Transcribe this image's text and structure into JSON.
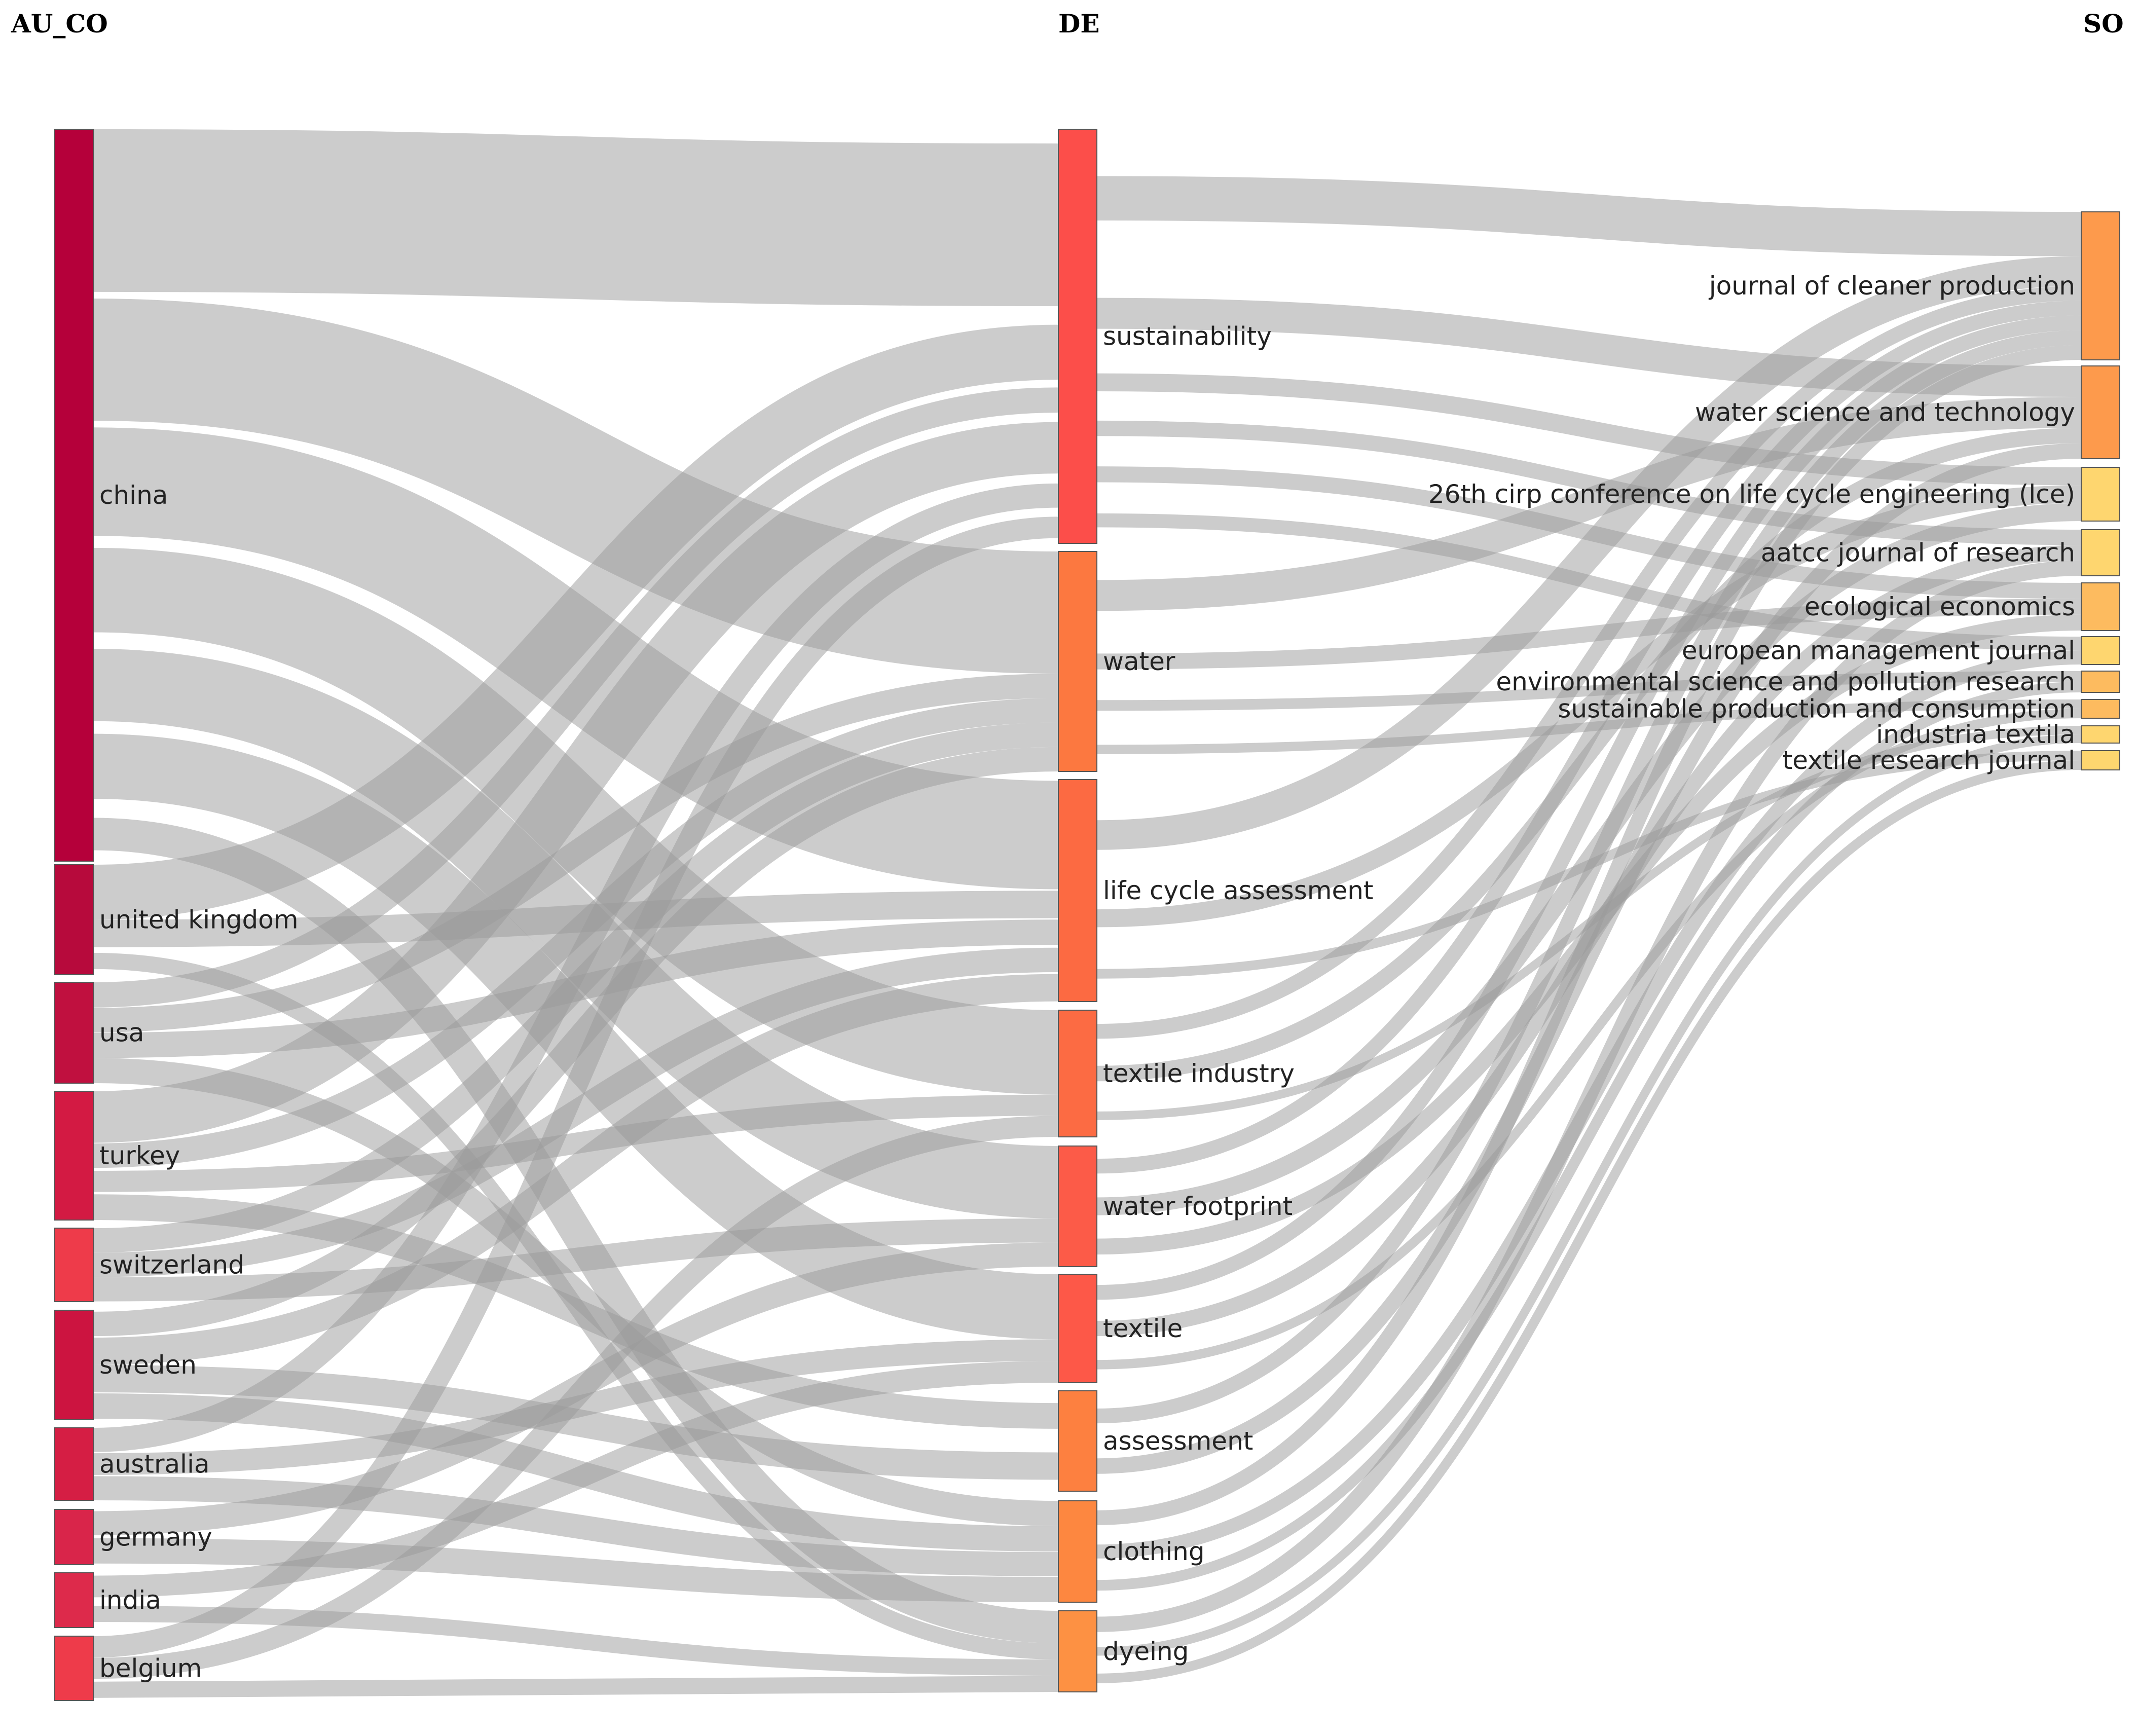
{
  "columns": {
    "left": "AU_CO",
    "middle": "DE",
    "right": "SO"
  },
  "node_colors": {
    "china": "#b5003a",
    "united_kingdom": "#b70a3c",
    "usa": "#c0103f",
    "turkey": "#d31a43",
    "switzerland": "#ee3b4a",
    "sweden": "#cc1440",
    "australia": "#d51e44",
    "germany": "#d9254a",
    "india": "#dd2a4b",
    "belgium": "#ee3b4a",
    "sustainability": "#fc4e4a",
    "water": "#fc7840",
    "life_cycle_assessment": "#fc6a42",
    "textile_industry": "#fc6b43",
    "water_footprint": "#fc5b48",
    "textile": "#fd5848",
    "assessment": "#fd8040",
    "clothing": "#fd8740",
    "dyeing": "#fd9143",
    "journal_of_cleaner_production": "#fd9a4c",
    "water_science_and_technology": "#fd9a4c",
    "small_journal": "#fed66f",
    "mid_journal": "#fdbb5f"
  },
  "chart_data": {
    "type": "sankey",
    "columns": [
      "AU_CO",
      "DE",
      "SO"
    ],
    "nodes": [
      {
        "id": "china",
        "label": "china",
        "column": 0
      },
      {
        "id": "united_kingdom",
        "label": "united kingdom",
        "column": 0
      },
      {
        "id": "usa",
        "label": "usa",
        "column": 0
      },
      {
        "id": "turkey",
        "label": "turkey",
        "column": 0
      },
      {
        "id": "switzerland",
        "label": "switzerland",
        "column": 0
      },
      {
        "id": "sweden",
        "label": "sweden",
        "column": 0
      },
      {
        "id": "australia",
        "label": "australia",
        "column": 0
      },
      {
        "id": "germany",
        "label": "germany",
        "column": 0
      },
      {
        "id": "india",
        "label": "india",
        "column": 0
      },
      {
        "id": "belgium",
        "label": "belgium",
        "column": 0
      },
      {
        "id": "sustainability",
        "label": "sustainability",
        "column": 1
      },
      {
        "id": "water",
        "label": "water",
        "column": 1
      },
      {
        "id": "life_cycle_assessment",
        "label": "life cycle assessment",
        "column": 1
      },
      {
        "id": "textile_industry",
        "label": "textile industry",
        "column": 1
      },
      {
        "id": "water_footprint",
        "label": "water footprint",
        "column": 1
      },
      {
        "id": "textile",
        "label": "textile",
        "column": 1
      },
      {
        "id": "assessment",
        "label": "assessment",
        "column": 1
      },
      {
        "id": "clothing",
        "label": "clothing",
        "column": 1
      },
      {
        "id": "dyeing",
        "label": "dyeing",
        "column": 1
      },
      {
        "id": "journal_of_cleaner_production",
        "label": "journal of cleaner production",
        "column": 2
      },
      {
        "id": "water_science_and_technology",
        "label": "water science and technology",
        "column": 2
      },
      {
        "id": "cirp_2019",
        "label": "26th cirp conference on life cycle engineering (lce)",
        "column": 2
      },
      {
        "id": "aatcc",
        "label": "aatcc journal of research",
        "column": 2
      },
      {
        "id": "ecological_economics",
        "label": "ecological economics",
        "column": 2
      },
      {
        "id": "european_management_journal",
        "label": "european management journal",
        "column": 2
      },
      {
        "id": "env_sci_pollution_research",
        "label": "environmental science and pollution research",
        "column": 2
      },
      {
        "id": "sustainable_production_consumption",
        "label": "sustainable production and consumption",
        "column": 2
      },
      {
        "id": "industria_textila",
        "label": "industria textila",
        "column": 2
      },
      {
        "id": "textile_research_journal",
        "label": "textile research journal",
        "column": 2
      }
    ],
    "links": [
      {
        "source": "china",
        "target": "sustainability",
        "value": 6
      },
      {
        "source": "china",
        "target": "water",
        "value": 5
      },
      {
        "source": "china",
        "target": "life_cycle_assessment",
        "value": 4
      },
      {
        "source": "china",
        "target": "textile_industry",
        "value": 4
      },
      {
        "source": "china",
        "target": "water_footprint",
        "value": 3
      },
      {
        "source": "china",
        "target": "textile",
        "value": 3
      },
      {
        "source": "china",
        "target": "dyeing",
        "value": 2
      },
      {
        "source": "united_kingdom",
        "target": "sustainability",
        "value": 2
      },
      {
        "source": "united_kingdom",
        "target": "life_cycle_assessment",
        "value": 1
      },
      {
        "source": "united_kingdom",
        "target": "dyeing",
        "value": 1
      },
      {
        "source": "usa",
        "target": "sustainability",
        "value": 1
      },
      {
        "source": "usa",
        "target": "water",
        "value": 1
      },
      {
        "source": "usa",
        "target": "life_cycle_assessment",
        "value": 1
      },
      {
        "source": "usa",
        "target": "clothing",
        "value": 1
      },
      {
        "source": "turkey",
        "target": "sustainability",
        "value": 2
      },
      {
        "source": "turkey",
        "target": "water",
        "value": 1
      },
      {
        "source": "turkey",
        "target": "textile_industry",
        "value": 1
      },
      {
        "source": "turkey",
        "target": "assessment",
        "value": 1
      },
      {
        "source": "switzerland",
        "target": "water",
        "value": 1
      },
      {
        "source": "switzerland",
        "target": "life_cycle_assessment",
        "value": 1
      },
      {
        "source": "switzerland",
        "target": "water_footprint",
        "value": 1
      },
      {
        "source": "sweden",
        "target": "water",
        "value": 1
      },
      {
        "source": "sweden",
        "target": "life_cycle_assessment",
        "value": 1
      },
      {
        "source": "sweden",
        "target": "assessment",
        "value": 1
      },
      {
        "source": "sweden",
        "target": "clothing",
        "value": 1
      },
      {
        "source": "australia",
        "target": "sustainability",
        "value": 1
      },
      {
        "source": "australia",
        "target": "textile",
        "value": 1
      },
      {
        "source": "australia",
        "target": "clothing",
        "value": 1
      },
      {
        "source": "germany",
        "target": "water_footprint",
        "value": 1
      },
      {
        "source": "germany",
        "target": "clothing",
        "value": 1
      },
      {
        "source": "india",
        "target": "textile",
        "value": 1
      },
      {
        "source": "india",
        "target": "dyeing",
        "value": 1
      },
      {
        "source": "belgium",
        "target": "sustainability",
        "value": 1
      },
      {
        "source": "belgium",
        "target": "textile_industry",
        "value": 1
      },
      {
        "source": "belgium",
        "target": "dyeing",
        "value": 1
      },
      {
        "source": "sustainability",
        "target": "journal_of_cleaner_production",
        "value": 3
      },
      {
        "source": "sustainability",
        "target": "water_science_and_technology",
        "value": 2
      },
      {
        "source": "sustainability",
        "target": "cirp_2019",
        "value": 1
      },
      {
        "source": "sustainability",
        "target": "aatcc",
        "value": 1
      },
      {
        "source": "sustainability",
        "target": "ecological_economics",
        "value": 1
      },
      {
        "source": "sustainability",
        "target": "european_management_journal",
        "value": 1
      },
      {
        "source": "water",
        "target": "water_science_and_technology",
        "value": 2
      },
      {
        "source": "water",
        "target": "ecological_economics",
        "value": 1
      },
      {
        "source": "water",
        "target": "env_sci_pollution_research",
        "value": 1
      },
      {
        "source": "water",
        "target": "sustainable_production_consumption",
        "value": 1
      },
      {
        "source": "life_cycle_assessment",
        "target": "journal_of_cleaner_production",
        "value": 2
      },
      {
        "source": "life_cycle_assessment",
        "target": "cirp_2019",
        "value": 1
      },
      {
        "source": "life_cycle_assessment",
        "target": "textile_research_journal",
        "value": 1
      },
      {
        "source": "textile_industry",
        "target": "journal_of_cleaner_production",
        "value": 1
      },
      {
        "source": "textile_industry",
        "target": "water_science_and_technology",
        "value": 1
      },
      {
        "source": "textile_industry",
        "target": "industria_textila",
        "value": 1
      },
      {
        "source": "water_footprint",
        "target": "journal_of_cleaner_production",
        "value": 1
      },
      {
        "source": "water_footprint",
        "target": "ecological_economics",
        "value": 1
      },
      {
        "source": "water_footprint",
        "target": "cirp_2019",
        "value": 1
      },
      {
        "source": "textile",
        "target": "journal_of_cleaner_production",
        "value": 1
      },
      {
        "source": "textile",
        "target": "aatcc",
        "value": 1
      },
      {
        "source": "textile",
        "target": "sustainable_production_consumption",
        "value": 1
      },
      {
        "source": "assessment",
        "target": "journal_of_cleaner_production",
        "value": 1
      },
      {
        "source": "assessment",
        "target": "water_science_and_technology",
        "value": 1
      },
      {
        "source": "clothing",
        "target": "journal_of_cleaner_production",
        "value": 1
      },
      {
        "source": "clothing",
        "target": "european_management_journal",
        "value": 1
      },
      {
        "source": "clothing",
        "target": "env_sci_pollution_research",
        "value": 1
      },
      {
        "source": "dyeing",
        "target": "aatcc",
        "value": 1
      },
      {
        "source": "dyeing",
        "target": "industria_textila",
        "value": 1
      },
      {
        "source": "dyeing",
        "target": "textile_research_journal",
        "value": 1
      }
    ]
  }
}
